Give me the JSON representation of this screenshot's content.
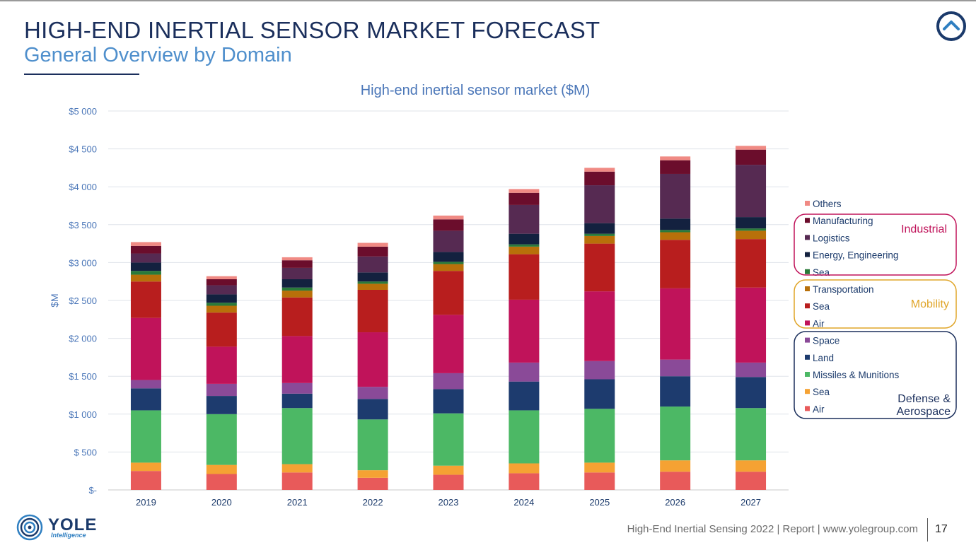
{
  "header": {
    "title": "HIGH-END INERTIAL SENSOR MARKET FORECAST",
    "subtitle": "General Overview by Domain"
  },
  "footer": {
    "report": "High-End Inertial Sensing 2022 | Report | www.yolegroup.com",
    "page": "17",
    "logo_word": "YOLE",
    "logo_sub": "Intelligence"
  },
  "colors": {
    "navy": "#1b2f5c",
    "accent": "#4f8fcc",
    "industrial": "#c0135a",
    "mobility": "#e0a528",
    "defense": "#1b2f5c"
  },
  "chart_data": {
    "type": "bar",
    "stacked": true,
    "title": "High-end inertial sensor market ($M)",
    "xlabel": "",
    "ylabel": "$M",
    "ylim": [
      0,
      5000
    ],
    "yticks": [
      0,
      500,
      1000,
      1500,
      2000,
      2500,
      3000,
      3500,
      4000,
      4500,
      5000
    ],
    "ytick_labels": [
      "$-",
      "$ 500",
      "$1 000",
      "$1 500",
      "$2 000",
      "$2 500",
      "$3 000",
      "$3 500",
      "$4 000",
      "$4 500",
      "$5 000"
    ],
    "grid": true,
    "categories": [
      "2019",
      "2020",
      "2021",
      "2022",
      "2023",
      "2024",
      "2025",
      "2026",
      "2027"
    ],
    "series": [
      {
        "name": "Air",
        "group": "Defense & Aerospace",
        "color": "#e85a5a",
        "values": [
          250,
          210,
          230,
          160,
          200,
          220,
          230,
          240,
          240
        ]
      },
      {
        "name": "Sea",
        "group": "Defense & Aerospace",
        "color": "#f5a233",
        "values": [
          110,
          120,
          110,
          100,
          120,
          130,
          130,
          150,
          150
        ]
      },
      {
        "name": "Missiles & Munitions",
        "group": "Defense & Aerospace",
        "color": "#4cb865",
        "values": [
          690,
          670,
          740,
          670,
          690,
          700,
          710,
          710,
          690
        ]
      },
      {
        "name": "Land",
        "group": "Defense & Aerospace",
        "color": "#1d3b6e",
        "values": [
          290,
          240,
          190,
          270,
          320,
          380,
          390,
          400,
          410
        ]
      },
      {
        "name": "Space",
        "group": "Defense & Aerospace",
        "color": "#8a4a98",
        "values": [
          110,
          160,
          140,
          160,
          210,
          250,
          240,
          220,
          190
        ]
      },
      {
        "name": "Air",
        "group": "Mobility",
        "color": "#c0135a",
        "values": [
          820,
          490,
          620,
          720,
          770,
          830,
          920,
          940,
          990
        ]
      },
      {
        "name": "Sea",
        "group": "Mobility",
        "color": "#b81e1e",
        "values": [
          480,
          450,
          510,
          560,
          580,
          600,
          630,
          640,
          640
        ]
      },
      {
        "name": "Transportation",
        "group": "Mobility",
        "color": "#b8700a",
        "values": [
          90,
          90,
          90,
          80,
          90,
          100,
          100,
          100,
          110
        ]
      },
      {
        "name": "Sea",
        "group": "Industrial",
        "color": "#2a7a3a",
        "values": [
          50,
          40,
          40,
          30,
          30,
          30,
          30,
          30,
          30
        ]
      },
      {
        "name": "Energy, Engineering",
        "group": "Industrial",
        "color": "#13213f",
        "values": [
          110,
          110,
          110,
          120,
          130,
          140,
          140,
          150,
          150
        ]
      },
      {
        "name": "Logistics",
        "group": "Industrial",
        "color": "#562a52",
        "values": [
          120,
          120,
          150,
          210,
          280,
          380,
          500,
          590,
          690
        ]
      },
      {
        "name": "Manufacturing",
        "group": "Industrial",
        "color": "#6b0d2c",
        "values": [
          100,
          80,
          100,
          130,
          150,
          160,
          180,
          180,
          200
        ]
      },
      {
        "name": "Others",
        "group": "Other",
        "color": "#f08a84",
        "values": [
          50,
          40,
          40,
          50,
          50,
          50,
          50,
          50,
          50
        ]
      }
    ],
    "legend": {
      "placement": "right",
      "order": [
        "Others",
        "Manufacturing",
        "Logistics",
        "Energy, Engineering",
        "Sea",
        "Transportation",
        "Sea",
        "Air",
        "Space",
        "Land",
        "Missiles & Munitions",
        "Sea",
        "Air"
      ],
      "groups": [
        {
          "name": "Industrial",
          "color": "#c0135a"
        },
        {
          "name": "Mobility",
          "color": "#e0a528"
        },
        {
          "name": "Defense &\nAerospace",
          "color": "#1b2f5c"
        }
      ]
    }
  }
}
